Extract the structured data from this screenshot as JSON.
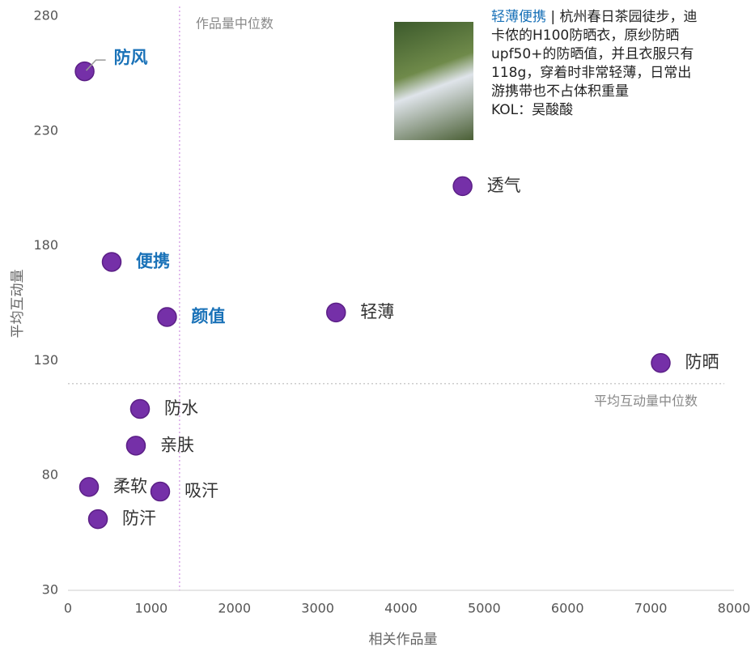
{
  "chart_data": {
    "type": "scatter",
    "x_label": "相关作品量",
    "y_label": "平均互动量",
    "x": [
      200,
      525,
      1190,
      3220,
      4740,
      7120,
      865,
      816,
      253,
      1108,
      360
    ],
    "series": [
      {
        "color": "#7530a8",
        "values": [
          256,
          173,
          149,
          151,
          206,
          129,
          109,
          93,
          75,
          73,
          61
        ]
      }
    ],
    "point_labels": [
      "防风",
      "便携",
      "颜值",
      "轻薄",
      "透气",
      "防晒",
      "防水",
      "亲肤",
      "柔软",
      "吸汗",
      "防汗"
    ],
    "highlight": [
      true,
      true,
      true,
      false,
      false,
      false,
      false,
      false,
      false,
      false,
      false
    ],
    "highlight_color": "#1a72b8",
    "xlim": [
      0,
      8000
    ],
    "xticks": [
      0,
      1000,
      2000,
      3000,
      4000,
      5000,
      6000,
      7000,
      8000
    ],
    "ylim": [
      30,
      280
    ],
    "yticks": [
      30,
      80,
      130,
      180,
      230,
      280
    ],
    "reference_lines": {
      "x": {
        "value": 1340,
        "label": "作品量中位数",
        "color": "#d9a8e8"
      },
      "y": {
        "value": 120,
        "label": "平均互动量中位数",
        "color": "#cccccc"
      }
    },
    "annotation": {
      "highlight_text": "轻薄便携",
      "text": "| 杭州春日茶园徒步，迪卡侬的H100防晒衣，原纱防晒upf50+的防晒值，并且衣服只有118g，穿着时非常轻薄，日常出游携带也不占体积重量",
      "author": "KOL：吴酸酸"
    }
  }
}
